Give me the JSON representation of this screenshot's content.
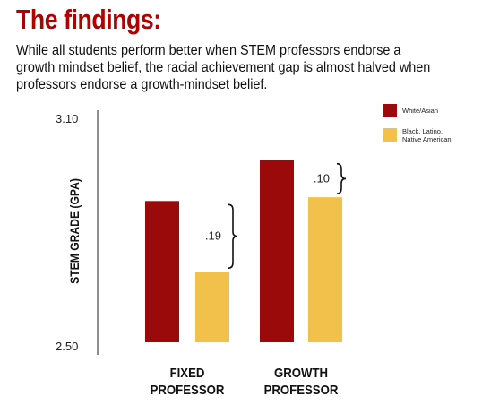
{
  "header": {
    "title": "The findings:",
    "subtitle": "While all students perform better when STEM professors endorse a growth mindset belief, the racial achievement gap is almost halved when professors endorse a growth-mindset belief."
  },
  "chart_data": {
    "type": "bar",
    "categories": [
      [
        "FIXED",
        "PROFESSOR"
      ],
      [
        "GROWTH",
        "PROFESSOR"
      ]
    ],
    "series": [
      {
        "name": "White/Asian",
        "color": "#9b0a0a",
        "values": [
          2.88,
          2.99
        ]
      },
      {
        "name": "Black, Latino, Native American",
        "color": "#f2c14b",
        "values": [
          2.69,
          2.89
        ]
      }
    ],
    "legend_lines": [
      [
        "White/Asian"
      ],
      [
        "Black, Latino,",
        "Native American"
      ]
    ],
    "ylabel": "STEM GRADE (GPA)",
    "ylim": [
      2.5,
      3.1
    ],
    "yticks": [
      "3.10",
      "2.50"
    ],
    "gap_labels": [
      ".19",
      ".10"
    ],
    "grid": false,
    "legend_position": "top-right"
  }
}
